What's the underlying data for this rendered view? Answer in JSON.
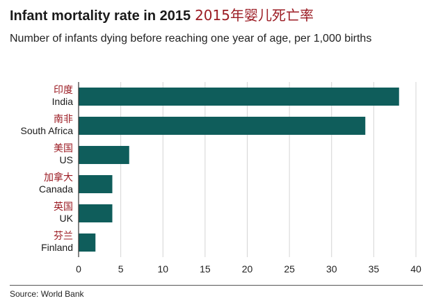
{
  "title_en": "Infant mortality rate in 2015",
  "title_cn": "2015年婴儿死亡率",
  "subtitle": "Number of infants dying before reaching one year of age, per 1,000 births",
  "source": "Source: World Bank",
  "colors": {
    "bar": "#0f5d5b",
    "label_cn": "#9b1b23",
    "grid": "#d4d4d4",
    "axis": "#333333"
  },
  "chart_data": {
    "type": "bar",
    "orientation": "horizontal",
    "categories": [
      "India",
      "South Africa",
      "US",
      "Canada",
      "UK",
      "Finland"
    ],
    "categories_cn": [
      "印度",
      "南非",
      "美国",
      "加拿大",
      "英国",
      "芬兰"
    ],
    "values": [
      38,
      34,
      6,
      4,
      4,
      2
    ],
    "xlim": [
      0,
      40
    ],
    "xticks": [
      0,
      5,
      10,
      15,
      20,
      25,
      30,
      35,
      40
    ],
    "grid": "vertical"
  }
}
